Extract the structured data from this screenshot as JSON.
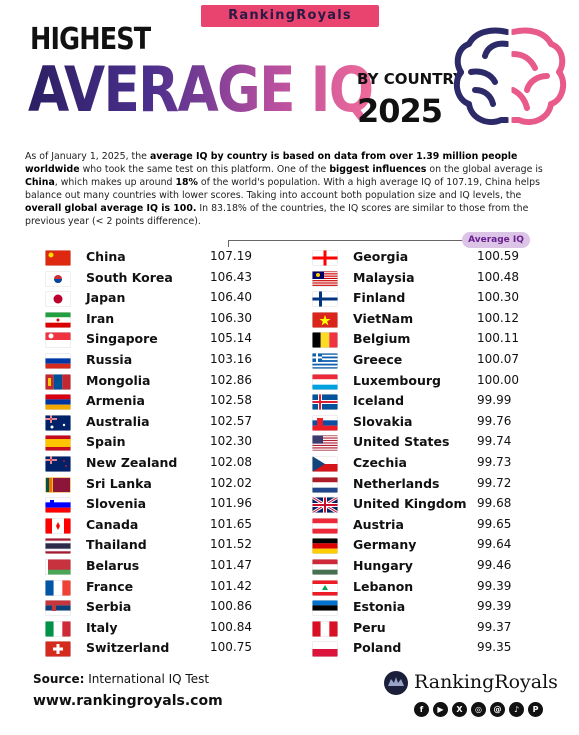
{
  "brand": "RankingRoyals",
  "title": {
    "line1": "HIGHEST",
    "line2": "AVERAGE IQ",
    "line3": "BY COUNTRY",
    "year": "2025"
  },
  "intro": {
    "p1": "As of January 1, 2025, the ",
    "b1": "average IQ by country is based on data from over 1.39 million people worldwide",
    "p2": " who took the same test on this platform. One of the ",
    "b2": "biggest influences",
    "p3": " on the global average is ",
    "b3": "China",
    "p4": ", which makes up around ",
    "b4": "18%",
    "p5": " of the world's population. With a high average IQ of 107.19, China helps balance out many countries with lower scores. Taking into account both population size and IQ levels, the ",
    "b5": "overall global average IQ is 100.",
    "p6": " In 83.18% of the countries, the IQ scores are similar to those from the previous year (< 2 points difference)."
  },
  "column_header": "Average IQ",
  "left": [
    {
      "name": "China",
      "value": "107.19",
      "flag": "cn"
    },
    {
      "name": "South Korea",
      "value": "106.43",
      "flag": "kr"
    },
    {
      "name": "Japan",
      "value": "106.40",
      "flag": "jp"
    },
    {
      "name": "Iran",
      "value": "106.30",
      "flag": "ir"
    },
    {
      "name": "Singapore",
      "value": "105.14",
      "flag": "sg"
    },
    {
      "name": "Russia",
      "value": "103.16",
      "flag": "ru"
    },
    {
      "name": "Mongolia",
      "value": "102.86",
      "flag": "mn"
    },
    {
      "name": "Armenia",
      "value": "102.58",
      "flag": "am"
    },
    {
      "name": "Australia",
      "value": "102.57",
      "flag": "au"
    },
    {
      "name": "Spain",
      "value": "102.30",
      "flag": "es"
    },
    {
      "name": "New Zealand",
      "value": "102.08",
      "flag": "nz"
    },
    {
      "name": "Sri Lanka",
      "value": "102.02",
      "flag": "lk"
    },
    {
      "name": "Slovenia",
      "value": "101.96",
      "flag": "si"
    },
    {
      "name": "Canada",
      "value": "101.65",
      "flag": "ca"
    },
    {
      "name": "Thailand",
      "value": "101.52",
      "flag": "th"
    },
    {
      "name": "Belarus",
      "value": "101.47",
      "flag": "by"
    },
    {
      "name": "France",
      "value": "101.42",
      "flag": "fr"
    },
    {
      "name": "Serbia",
      "value": "100.86",
      "flag": "rs"
    },
    {
      "name": "Italy",
      "value": "100.84",
      "flag": "it"
    },
    {
      "name": "Switzerland",
      "value": "100.75",
      "flag": "ch"
    }
  ],
  "right": [
    {
      "name": "Georgia",
      "value": "100.59",
      "flag": "ge"
    },
    {
      "name": "Malaysia",
      "value": "100.48",
      "flag": "my"
    },
    {
      "name": "Finland",
      "value": "100.30",
      "flag": "fi"
    },
    {
      "name": "VietNam",
      "value": "100.12",
      "flag": "vn"
    },
    {
      "name": "Belgium",
      "value": "100.11",
      "flag": "be"
    },
    {
      "name": "Greece",
      "value": "100.07",
      "flag": "gr"
    },
    {
      "name": "Luxembourg",
      "value": "100.00",
      "flag": "lu"
    },
    {
      "name": "Iceland",
      "value": "99.99",
      "flag": "is"
    },
    {
      "name": "Slovakia",
      "value": "99.76",
      "flag": "sk"
    },
    {
      "name": "United States",
      "value": "99.74",
      "flag": "us"
    },
    {
      "name": "Czechia",
      "value": "99.73",
      "flag": "cz"
    },
    {
      "name": "Netherlands",
      "value": "99.72",
      "flag": "nl"
    },
    {
      "name": "United Kingdom",
      "value": "99.68",
      "flag": "gb"
    },
    {
      "name": "Austria",
      "value": "99.65",
      "flag": "at"
    },
    {
      "name": "Germany",
      "value": "99.64",
      "flag": "de"
    },
    {
      "name": "Hungary",
      "value": "99.46",
      "flag": "hu"
    },
    {
      "name": "Lebanon",
      "value": "99.39",
      "flag": "lb"
    },
    {
      "name": "Estonia",
      "value": "99.39",
      "flag": "ee"
    },
    {
      "name": "Peru",
      "value": "99.37",
      "flag": "pe"
    },
    {
      "name": "Poland",
      "value": "99.35",
      "flag": "pl"
    }
  ],
  "footer": {
    "source_label": "Source:",
    "source_value": "International IQ Test",
    "url": "www.rankingroyals.com",
    "logo_text": "RankingRoyals",
    "socials": [
      "facebook-icon",
      "youtube-icon",
      "x-icon",
      "instagram-icon",
      "threads-icon",
      "tiktok-icon",
      "pinterest-icon"
    ]
  }
}
